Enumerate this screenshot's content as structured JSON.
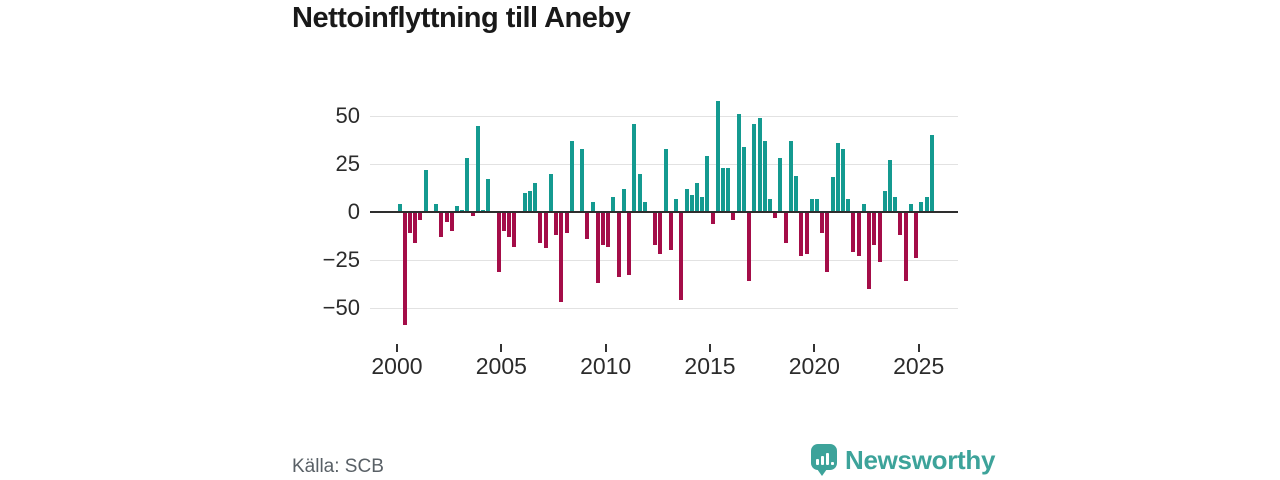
{
  "title": "Nettoinflyttning till Aneby",
  "source_note": "Källa: SCB",
  "branding": {
    "wordmark": "Newsworthy",
    "icon": "newsworthy-speech-bubble-bar-chart-icon"
  },
  "colors": {
    "positive_bar": "#149a90",
    "negative_bar": "#a40d48",
    "gridline": "#e2e2e2",
    "zero_line": "#2e2e2e",
    "axis_text": "#2b2b2b",
    "title_text": "#191919",
    "source_text": "#596066",
    "brand_teal": "#3da39a",
    "background": "#ffffff"
  },
  "chart_data": {
    "type": "bar",
    "title": "Nettoinflyttning till Aneby",
    "frequency": "quarterly",
    "start_period": "2000 Q1",
    "end_period": "2025 Q3",
    "grid": true,
    "legend": "none",
    "ylim": [
      -65,
      65
    ],
    "y_ticks": {
      "values": [
        50,
        25,
        0,
        -25,
        -50
      ],
      "labels": [
        "50",
        "25",
        "0",
        "−25",
        "−50"
      ]
    },
    "x_ticks": {
      "years": [
        2000,
        2005,
        2010,
        2015,
        2020,
        2025
      ],
      "labels": [
        "2000",
        "2005",
        "2010",
        "2015",
        "2020",
        "2025"
      ]
    },
    "series_note": "net migration per quarter; teal = positive, crimson = negative",
    "values": [
      4,
      -59,
      -11,
      -16,
      -4,
      22,
      0,
      4,
      -13,
      -5,
      -10,
      3,
      1,
      28,
      -2,
      45,
      1,
      17,
      0,
      -31,
      -10,
      -13,
      -18,
      0,
      10,
      11,
      15,
      -16,
      -19,
      20,
      -12,
      -47,
      -11,
      37,
      0,
      33,
      -14,
      5,
      -37,
      -17,
      -18,
      8,
      -34,
      12,
      -33,
      46,
      20,
      5,
      0,
      -17,
      -22,
      33,
      -20,
      7,
      -46,
      12,
      9,
      15,
      8,
      29,
      -6,
      58,
      23,
      23,
      -4,
      51,
      34,
      -36,
      46,
      49,
      37,
      7,
      -3,
      28,
      -16,
      37,
      19,
      -23,
      -22,
      7,
      7,
      -11,
      -31,
      18,
      36,
      33,
      7,
      -21,
      -23,
      4,
      -40,
      -17,
      -26,
      11,
      27,
      8,
      -12,
      -36,
      4,
      -24,
      5,
      8,
      40
    ]
  }
}
